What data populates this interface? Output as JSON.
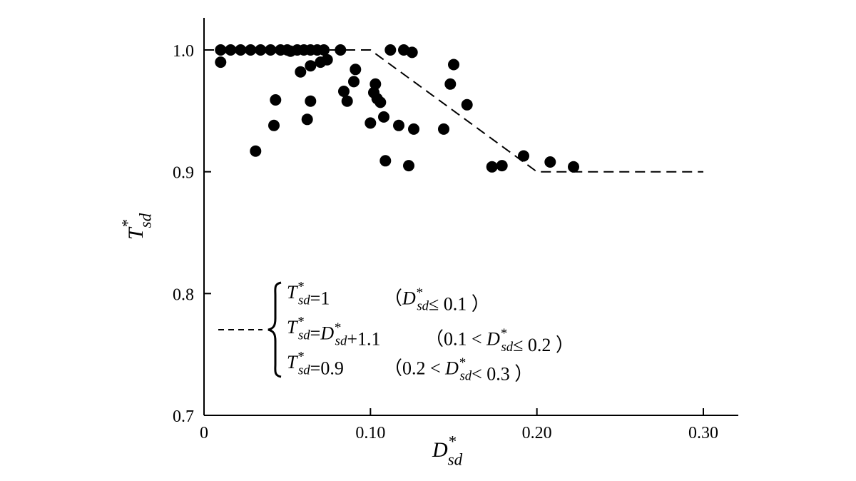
{
  "chart_data": {
    "type": "scatter",
    "xlabel": {
      "base": "D",
      "sup": "*",
      "sub": "sd"
    },
    "ylabel": {
      "base": "T",
      "sup": "*",
      "sub": "sd"
    },
    "xlim": [
      0,
      0.3
    ],
    "ylim": [
      0.7,
      1.03
    ],
    "x_ticks": [
      {
        "value": 0,
        "label": "0"
      },
      {
        "value": 0.1,
        "label": "0.10"
      },
      {
        "value": 0.2,
        "label": "0.20"
      },
      {
        "value": 0.3,
        "label": "0.30"
      }
    ],
    "y_ticks": [
      {
        "value": 0.7,
        "label": "0.7"
      },
      {
        "value": 0.8,
        "label": "0.8"
      },
      {
        "value": 0.9,
        "label": "0.9"
      },
      {
        "value": 1.0,
        "label": "1.0"
      }
    ],
    "grid": false,
    "series": [
      {
        "marker": "filled-circle",
        "color": "#000000",
        "points": [
          [
            0.01,
            1.0
          ],
          [
            0.01,
            0.99
          ],
          [
            0.016,
            1.0
          ],
          [
            0.022,
            1.0
          ],
          [
            0.028,
            1.0
          ],
          [
            0.034,
            1.0
          ],
          [
            0.04,
            1.0
          ],
          [
            0.046,
            1.0
          ],
          [
            0.05,
            1.0
          ],
          [
            0.052,
            0.999
          ],
          [
            0.056,
            1.0
          ],
          [
            0.06,
            1.0
          ],
          [
            0.064,
            1.0
          ],
          [
            0.068,
            1.0
          ],
          [
            0.072,
            1.0
          ],
          [
            0.082,
            1.0
          ],
          [
            0.112,
            1.0
          ],
          [
            0.12,
            1.0
          ],
          [
            0.125,
            0.998
          ],
          [
            0.058,
            0.982
          ],
          [
            0.064,
            0.987
          ],
          [
            0.07,
            0.99
          ],
          [
            0.074,
            0.992
          ],
          [
            0.031,
            0.917
          ],
          [
            0.042,
            0.938
          ],
          [
            0.043,
            0.959
          ],
          [
            0.062,
            0.943
          ],
          [
            0.064,
            0.958
          ],
          [
            0.084,
            0.966
          ],
          [
            0.086,
            0.958
          ],
          [
            0.09,
            0.974
          ],
          [
            0.091,
            0.984
          ],
          [
            0.1,
            0.94
          ],
          [
            0.102,
            0.965
          ],
          [
            0.103,
            0.972
          ],
          [
            0.104,
            0.96
          ],
          [
            0.106,
            0.957
          ],
          [
            0.108,
            0.945
          ],
          [
            0.109,
            0.909
          ],
          [
            0.117,
            0.938
          ],
          [
            0.123,
            0.905
          ],
          [
            0.126,
            0.935
          ],
          [
            0.144,
            0.935
          ],
          [
            0.148,
            0.972
          ],
          [
            0.15,
            0.988
          ],
          [
            0.158,
            0.955
          ],
          [
            0.173,
            0.904
          ],
          [
            0.179,
            0.905
          ],
          [
            0.192,
            0.913
          ],
          [
            0.208,
            0.908
          ],
          [
            0.222,
            0.904
          ]
        ]
      }
    ],
    "fit_line": {
      "style": "dashed",
      "points": [
        [
          0,
          1.0
        ],
        [
          0.1,
          1.0
        ],
        [
          0.2,
          0.9
        ],
        [
          0.3,
          0.9
        ]
      ]
    },
    "legend": {
      "placement": "lower-left",
      "entries": [
        {
          "lhs": "=1",
          "cond": "（",
          "cond_tail": "≤ 0.1 ）"
        },
        {
          "lhs": "=",
          "mid": "+1.1",
          "cond": "（0.1 < ",
          "cond_tail": "≤ 0.2 ）"
        },
        {
          "lhs": "=0.9",
          "cond": "（0.2 < ",
          "cond_tail": "< 0.3 ）"
        }
      ]
    }
  }
}
